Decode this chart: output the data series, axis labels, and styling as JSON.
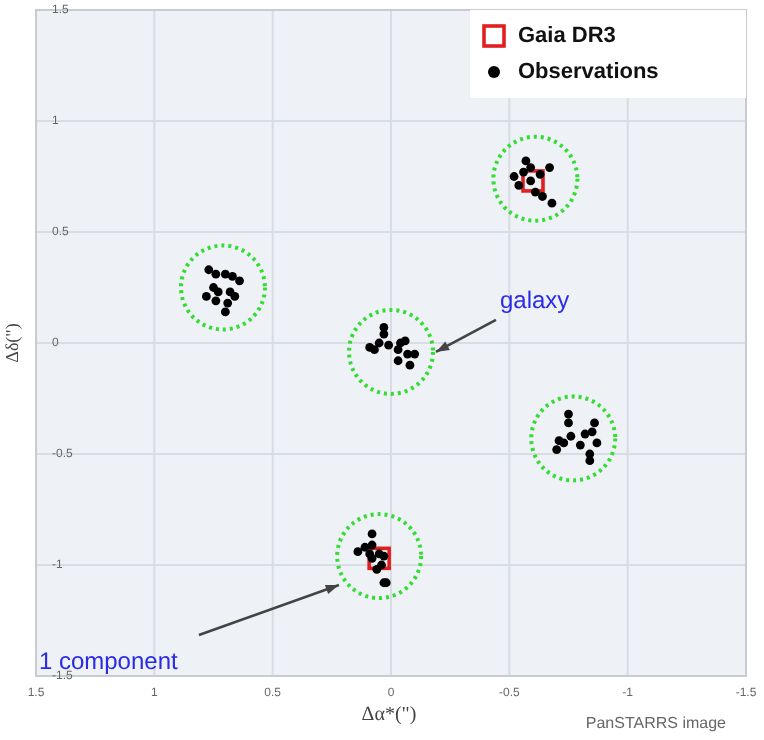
{
  "chart_data": {
    "type": "scatter",
    "xlabel": "Δα*(\")",
    "ylabel": "Δδ(\")",
    "xlim": [
      1.5,
      -1.5
    ],
    "ylim": [
      -1.5,
      1.5
    ],
    "xticks": [
      1.5,
      1,
      0.5,
      0,
      -0.5,
      -1,
      -1.5
    ],
    "yticks": [
      -1.5,
      -1,
      -0.5,
      0,
      0.5,
      1,
      1.5
    ],
    "grid": true,
    "legend": "top right",
    "series": [
      {
        "name": "Gaia DR3",
        "color": "#e02020",
        "marker": "square",
        "x": [
          -0.6,
          0.05
        ],
        "values": [
          0.73,
          -0.97
        ]
      },
      {
        "name": "Observations",
        "color": "#000000",
        "marker": "circle",
        "x": [
          -0.57,
          -0.59,
          -0.52,
          -0.54,
          -0.59,
          -0.63,
          -0.67,
          -0.64,
          -0.68,
          -0.56,
          -0.61,
          0.77,
          0.74,
          0.7,
          0.67,
          0.64,
          0.75,
          0.73,
          0.68,
          0.66,
          0.78,
          0.74,
          0.69,
          0.7,
          0.03,
          0.03,
          0.05,
          0.07,
          0.01,
          -0.03,
          -0.06,
          -0.07,
          -0.1,
          -0.03,
          -0.08,
          0.09,
          -0.04,
          -0.75,
          -0.75,
          -0.82,
          -0.85,
          -0.86,
          -0.8,
          -0.84,
          -0.84,
          -0.71,
          -0.73,
          -0.76,
          -0.7,
          -0.87,
          0.08,
          0.14,
          0.11,
          0.09,
          0.08,
          0.05,
          0.03,
          0.04,
          0.06,
          0.03,
          0.02,
          0.08
        ],
        "values": [
          0.82,
          0.79,
          0.75,
          0.71,
          0.73,
          0.76,
          0.79,
          0.66,
          0.63,
          0.77,
          0.68,
          0.33,
          0.31,
          0.31,
          0.3,
          0.28,
          0.25,
          0.23,
          0.23,
          0.21,
          0.21,
          0.19,
          0.18,
          0.14,
          0.07,
          0.04,
          0,
          -0.03,
          -0.01,
          -0.03,
          0.01,
          -0.05,
          -0.05,
          -0.08,
          -0.1,
          -0.02,
          0,
          -0.32,
          -0.36,
          -0.41,
          -0.4,
          -0.36,
          -0.46,
          -0.5,
          -0.53,
          -0.44,
          -0.45,
          -0.42,
          -0.48,
          -0.45,
          -0.86,
          -0.94,
          -0.92,
          -0.95,
          -0.97,
          -0.95,
          -0.96,
          -1,
          -1.02,
          -1.08,
          -1.08,
          -0.91
        ]
      },
      {
        "color": "#33dd33",
        "marker": "circle",
        "x": [
          -0.61,
          0.71,
          0,
          -0.77,
          0.05
        ],
        "values": [
          0.74,
          0.25,
          -0.04,
          -0.43,
          -0.96
        ]
      }
    ],
    "annotations": [
      {
        "text": "galaxy",
        "x": -0.19,
        "y": -0.04
      },
      {
        "text": "1 component",
        "x": 0.22,
        "y": -1.09
      },
      "PanSTARRS image"
    ]
  }
}
